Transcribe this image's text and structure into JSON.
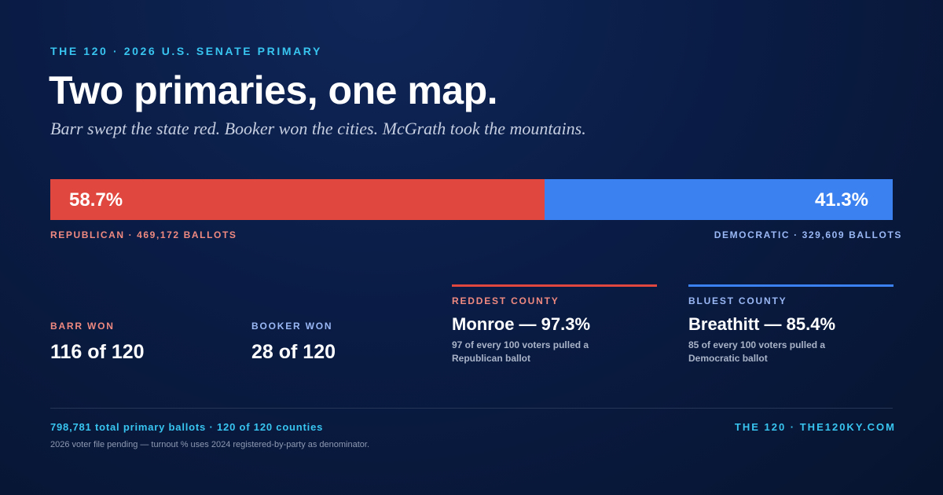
{
  "header": {
    "kicker": "THE 120 · 2026 U.S. SENATE PRIMARY",
    "title": "Two primaries, one map.",
    "subtitle": "Barr swept the state red. Booker won the cities. McGrath took the mountains."
  },
  "split_bar": {
    "segments": [
      {
        "name": "Republican",
        "value": 58.7,
        "label": "58.7%",
        "color": "#e0483f",
        "caption": "REPUBLICAN · 469,172 BALLOTS",
        "caption_color": "#f08a80"
      },
      {
        "name": "Democratic",
        "value": 41.3,
        "label": "41.3%",
        "color": "#3b82f0",
        "caption": "DEMOCRATIC · 329,609 BALLOTS",
        "caption_color": "#9ab8f5"
      }
    ]
  },
  "stats": [
    {
      "label": "BARR WON",
      "value": "116 of 120"
    },
    {
      "label": "BOOKER WON",
      "value": "28 of 120"
    }
  ],
  "counties": [
    {
      "label": "REDDEST COUNTY",
      "value": "Monroe — 97.3%",
      "note": "97 of every 100 voters pulled a Republican ballot"
    },
    {
      "label": "BLUEST COUNTY",
      "value": "Breathitt — 85.4%",
      "note": "85 of every 100 voters pulled a Democratic ballot"
    }
  ],
  "footer": {
    "summary": "798,781 total primary ballots · 120 of 120 counties",
    "site": "THE 120 · THE120KY.COM",
    "note": "2026 voter file pending — turnout % uses 2024 registered-by-party as denominator."
  }
}
